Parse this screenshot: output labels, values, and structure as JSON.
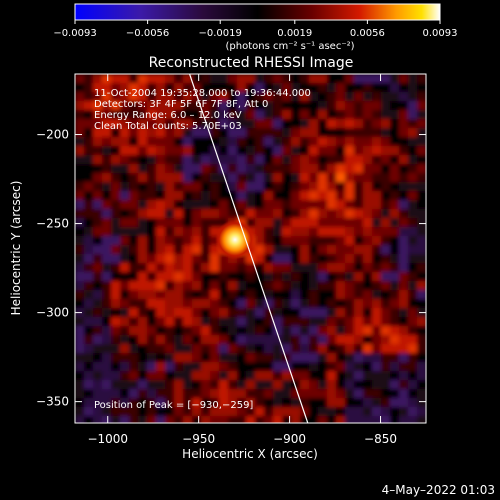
{
  "chart_data": {
    "type": "heatmap",
    "title": "Reconstructed RHESSI Image",
    "xlabel": "Heliocentric X (arcsec)",
    "ylabel": "Heliocentric Y (arcsec)",
    "xlim": [
      -1018,
      -825
    ],
    "ylim": [
      -362,
      -166
    ],
    "x_ticks": [
      -1000,
      -950,
      -900,
      -850
    ],
    "y_ticks": [
      -200,
      -250,
      -300,
      -350
    ],
    "x_tick_labels": [
      "−1000",
      "−950",
      "−900",
      "−850"
    ],
    "y_tick_labels": [
      "−200",
      "−250",
      "−300",
      "−350"
    ],
    "colorbar": {
      "range": [
        -0.0093,
        0.0093
      ],
      "ticks": [
        -0.0093,
        -0.0056,
        -0.0019,
        0.0019,
        0.0056,
        0.0093
      ],
      "tick_labels": [
        "−0.0093",
        "−0.0056",
        "−0.0019",
        "0.0019",
        "0.0056",
        "0.0093"
      ],
      "units": "(photons cm⁻² s⁻¹ asec⁻²)"
    },
    "annotations": [
      "11-Oct-2004 19:35:28.000 to 19:36:44.000",
      "Detectors: 3F 4F 5F 6F 7F 8F, Att 0",
      "Energy Range: 6.0 – 12.0 keV",
      "Clean     Total counts: 5.70E+03"
    ],
    "peak_label": "Position of Peak = [−930,−259]",
    "peak": {
      "x": -930,
      "y": -259,
      "value": 0.0093
    },
    "limb_line": [
      [
        -955,
        -166
      ],
      [
        -890,
        -362
      ]
    ],
    "grid": false
  },
  "footer": {
    "date": "4–May–2022 01:03"
  },
  "colors": {
    "background": "#000000",
    "colormap_low": "#0000ff",
    "colormap_mid": "#000000",
    "colormap_high": "#ffffff"
  }
}
